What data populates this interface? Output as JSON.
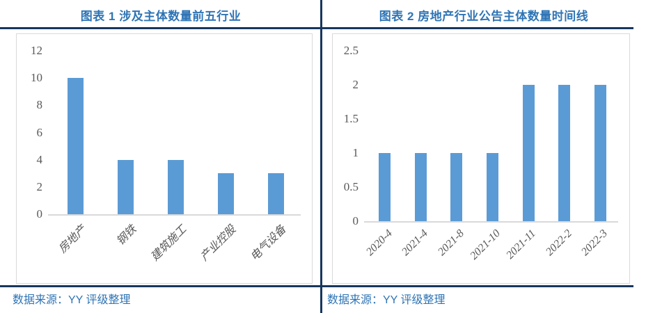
{
  "colors": {
    "title_blue": "#2E74B5",
    "rule_navy": "#17365D",
    "bar_blue": "#5B9BD5",
    "axis_text_gray": "#595959",
    "chart_border_gray": "#D9D9D9",
    "source_blue": "#2E74B5"
  },
  "panels": [
    {
      "title": "图表 1 涉及主体数量前五行业",
      "source": "数据来源：YY 评级整理"
    },
    {
      "title": "图表 2 房地产行业公告主体数量时间线",
      "source": "数据来源：YY 评级整理"
    }
  ],
  "chart_data": [
    {
      "type": "bar",
      "title": "图表 1 涉及主体数量前五行业",
      "categories": [
        "房地产",
        "钢铁",
        "建筑施工",
        "产业控股",
        "电气设备"
      ],
      "values": [
        10,
        4,
        4,
        3,
        3
      ],
      "xlabel": "",
      "ylabel": "",
      "ylim": [
        0,
        12
      ],
      "yticks": [
        {
          "label": "0",
          "value": 0
        },
        {
          "label": "2",
          "value": 2
        },
        {
          "label": "4",
          "value": 4
        },
        {
          "label": "6",
          "value": 6
        },
        {
          "label": "8",
          "value": 8
        },
        {
          "label": "10",
          "value": 10
        },
        {
          "label": "12",
          "value": 12
        }
      ],
      "bar_color": "#5B9BD5",
      "grid": false,
      "legend": false,
      "x_tick_rotation": 45
    },
    {
      "type": "bar",
      "title": "图表 2 房地产行业公告主体数量时间线",
      "categories": [
        "2020-4",
        "2021-4",
        "2021-8",
        "2021-10",
        "2021-11",
        "2022-2",
        "2022-3"
      ],
      "values": [
        1,
        1,
        1,
        1,
        2,
        2,
        2
      ],
      "xlabel": "",
      "ylabel": "",
      "ylim": [
        0,
        2.5
      ],
      "yticks": [
        {
          "label": "0",
          "value": 0
        },
        {
          "label": "0.5",
          "value": 0.5
        },
        {
          "label": "1",
          "value": 1
        },
        {
          "label": "1.5",
          "value": 1.5
        },
        {
          "label": "2",
          "value": 2
        },
        {
          "label": "2.5",
          "value": 2.5
        }
      ],
      "bar_color": "#5B9BD5",
      "grid": false,
      "legend": false,
      "x_tick_rotation": 45
    }
  ]
}
